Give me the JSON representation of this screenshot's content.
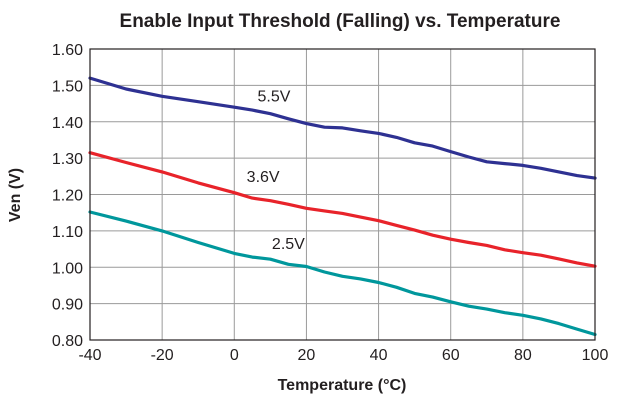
{
  "chart_data": {
    "type": "line",
    "title": "Enable Input Threshold (Falling) vs. Temperature",
    "xlabel": "Temperature (°C)",
    "ylabel": "Ven (V)",
    "xlim": [
      -40,
      100
    ],
    "ylim": [
      0.8,
      1.6
    ],
    "x_ticks": [
      -40,
      -20,
      0,
      20,
      40,
      60,
      80,
      100
    ],
    "x_tick_labels": [
      "-40",
      "-20",
      "0",
      "20",
      "40",
      "60",
      "80",
      "100"
    ],
    "y_ticks": [
      0.8,
      0.9,
      1.0,
      1.1,
      1.2,
      1.3,
      1.4,
      1.5,
      1.6
    ],
    "y_tick_labels": [
      "0.80",
      "0.90",
      "1.00",
      "1.10",
      "1.20",
      "1.30",
      "1.40",
      "1.50",
      "1.60"
    ],
    "grid": true,
    "series": [
      {
        "name": "5.5V",
        "color": "#2e3192",
        "x": [
          -40,
          -30,
          -20,
          -10,
          0,
          5,
          10,
          15,
          20,
          25,
          30,
          35,
          40,
          45,
          50,
          55,
          60,
          65,
          70,
          75,
          80,
          85,
          90,
          95,
          100
        ],
        "y": [
          1.52,
          1.49,
          1.47,
          1.455,
          1.44,
          1.432,
          1.422,
          1.408,
          1.395,
          1.385,
          1.383,
          1.375,
          1.368,
          1.357,
          1.342,
          1.333,
          1.318,
          1.303,
          1.29,
          1.285,
          1.28,
          1.272,
          1.262,
          1.252,
          1.245
        ]
      },
      {
        "name": "3.6V",
        "color": "#e8232a",
        "x": [
          -40,
          -30,
          -20,
          -10,
          0,
          5,
          10,
          15,
          20,
          25,
          30,
          35,
          40,
          45,
          50,
          55,
          60,
          65,
          70,
          75,
          80,
          85,
          90,
          95,
          100
        ],
        "y": [
          1.315,
          1.288,
          1.262,
          1.232,
          1.205,
          1.19,
          1.183,
          1.173,
          1.162,
          1.155,
          1.148,
          1.138,
          1.128,
          1.115,
          1.102,
          1.088,
          1.077,
          1.068,
          1.06,
          1.048,
          1.04,
          1.033,
          1.023,
          1.012,
          1.003
        ]
      },
      {
        "name": "2.5V",
        "color": "#00979c",
        "x": [
          -40,
          -30,
          -20,
          -10,
          0,
          5,
          10,
          15,
          20,
          25,
          30,
          35,
          40,
          45,
          50,
          55,
          60,
          65,
          70,
          75,
          80,
          85,
          90,
          95,
          100
        ],
        "y": [
          1.152,
          1.127,
          1.1,
          1.068,
          1.038,
          1.028,
          1.022,
          1.008,
          1.002,
          0.987,
          0.975,
          0.968,
          0.958,
          0.945,
          0.928,
          0.918,
          0.905,
          0.893,
          0.885,
          0.875,
          0.868,
          0.858,
          0.845,
          0.83,
          0.815
        ]
      }
    ],
    "series_labels": [
      {
        "text": "5.5V",
        "x": 11,
        "y": 1.455
      },
      {
        "text": "3.6V",
        "x": 8,
        "y": 1.235
      },
      {
        "text": "2.5V",
        "x": 15,
        "y": 1.05
      }
    ]
  }
}
